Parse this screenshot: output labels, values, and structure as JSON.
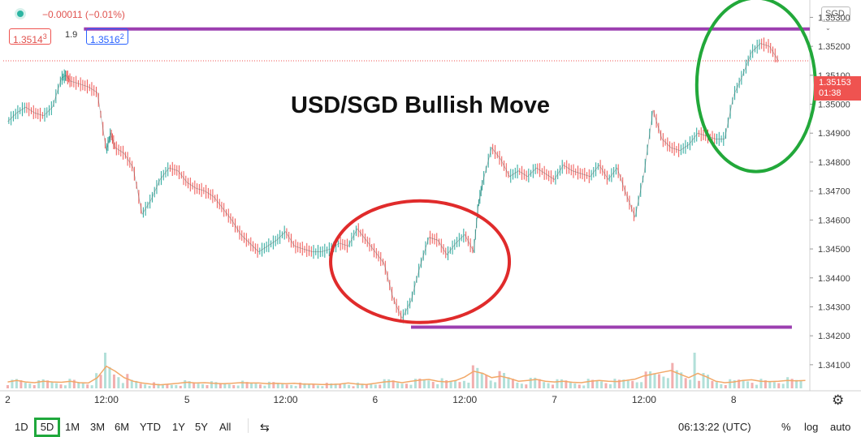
{
  "header": {
    "change": "−0.00011 (−0.01%)",
    "bid": "1.3514",
    "bid_sup": "3",
    "spread": "1.9",
    "ask": "1.3516",
    "ask_sup": "2"
  },
  "currency_button": "SGD",
  "price_tag": {
    "price": "1.35153",
    "countdown": "01:38"
  },
  "annotation": "USD/SGD Bullish Move",
  "toolbar": {
    "ranges": [
      "1D",
      "5D",
      "1M",
      "3M",
      "6M",
      "YTD",
      "1Y",
      "5Y",
      "All"
    ],
    "active_range": "5D",
    "time": "06:13:22 (UTC)",
    "percent": "%",
    "log": "log",
    "auto": "auto"
  },
  "colors": {
    "up": "#26a69a",
    "down": "#ef5350",
    "resistance_line": "#9c3fb0",
    "circle_low": "#e02b2b",
    "circle_high": "#22a83a",
    "volume_ma": "#f2a868"
  },
  "chart_data": {
    "type": "line",
    "title": "",
    "xlabel": "",
    "ylabel": "",
    "ylim": [
      1.3401,
      1.3536
    ],
    "y_ticks": [
      1.341,
      1.342,
      1.343,
      1.344,
      1.345,
      1.346,
      1.347,
      1.348,
      1.349,
      1.35,
      1.351,
      1.352,
      1.353
    ],
    "x_ticks": [
      {
        "label": "2",
        "t": 0.0
      },
      {
        "label": "12:00",
        "t": 11.0
      },
      {
        "label": "5",
        "t": 20.0
      },
      {
        "label": "12:00",
        "t": 31.0
      },
      {
        "label": "6",
        "t": 41.0
      },
      {
        "label": "12:00",
        "t": 51.0
      },
      {
        "label": "7",
        "t": 61.0
      },
      {
        "label": "12:00",
        "t": 71.0
      },
      {
        "label": "8",
        "t": 81.0
      }
    ],
    "xlim": [
      -0.5,
      89.5
    ],
    "series": [
      {
        "x": [
          0,
          1,
          2,
          3,
          4,
          5,
          6,
          6.5,
          7,
          8,
          9,
          10,
          11,
          11.5,
          12,
          13,
          14,
          15,
          16,
          17,
          18,
          19,
          20,
          21,
          22,
          23,
          24,
          25,
          26,
          27,
          28,
          29,
          30,
          31,
          32,
          33,
          34,
          35,
          36,
          37,
          38,
          39,
          40,
          41,
          42,
          43,
          44,
          45,
          46,
          47,
          48,
          49,
          50,
          51,
          52,
          52.5,
          53,
          54,
          55,
          56,
          57,
          58,
          59,
          60,
          61,
          62,
          63,
          64,
          65,
          66,
          67,
          68,
          69,
          70,
          71,
          72,
          73,
          74,
          75,
          76,
          77,
          78,
          79,
          80,
          81,
          82,
          83,
          84,
          85,
          86
        ],
        "y": [
          1.3494,
          1.3497,
          1.3499,
          1.3497,
          1.3496,
          1.3499,
          1.3509,
          1.351,
          1.3508,
          1.3507,
          1.3506,
          1.3504,
          1.3484,
          1.349,
          1.3485,
          1.3483,
          1.3478,
          1.3462,
          1.3467,
          1.3474,
          1.3478,
          1.3477,
          1.3473,
          1.3471,
          1.347,
          1.3468,
          1.3464,
          1.346,
          1.3455,
          1.3452,
          1.3449,
          1.3451,
          1.3453,
          1.3456,
          1.3451,
          1.345,
          1.3449,
          1.3449,
          1.345,
          1.3452,
          1.3451,
          1.3457,
          1.3453,
          1.3449,
          1.3445,
          1.3433,
          1.3426,
          1.3432,
          1.3444,
          1.3454,
          1.3453,
          1.3448,
          1.3452,
          1.3455,
          1.3449,
          1.3465,
          1.3473,
          1.3485,
          1.3481,
          1.3475,
          1.3477,
          1.3475,
          1.3478,
          1.3476,
          1.3474,
          1.3479,
          1.3477,
          1.3476,
          1.3475,
          1.3479,
          1.3474,
          1.3478,
          1.3469,
          1.3461,
          1.3476,
          1.3498,
          1.3488,
          1.3485,
          1.3484,
          1.3486,
          1.349,
          1.3489,
          1.3488,
          1.3488,
          1.3503,
          1.351,
          1.3518,
          1.3521,
          1.352,
          1.3515
        ]
      }
    ],
    "horizontal_lines": [
      {
        "y": 1.3526,
        "x_range": [
          8.5,
          89.5
        ]
      },
      {
        "y": 1.3423,
        "x_range": [
          45.0,
          87.5
        ]
      }
    ],
    "circled_regions": [
      {
        "x_center": 46.0,
        "y_center": 1.34456,
        "color_key": "circle_low"
      },
      {
        "x_center": 83.5,
        "y_center": 1.35067,
        "color_key": "circle_high"
      }
    ],
    "volume": {
      "note_spikes_at_x": [
        11.0,
        76.5
      ],
      "ma": [
        0.18,
        0.22,
        0.18,
        0.16,
        0.2,
        0.18,
        0.17,
        0.2,
        0.16,
        0.15,
        0.3,
        0.62,
        0.48,
        0.3,
        0.2,
        0.15,
        0.12,
        0.1,
        0.12,
        0.14,
        0.17,
        0.15,
        0.16,
        0.14,
        0.13,
        0.14,
        0.16,
        0.15,
        0.15,
        0.13,
        0.14,
        0.13,
        0.14,
        0.12,
        0.12,
        0.11,
        0.11,
        0.12,
        0.15,
        0.12,
        0.11,
        0.14,
        0.18,
        0.2,
        0.16,
        0.2,
        0.23,
        0.25,
        0.2,
        0.18,
        0.22,
        0.32,
        0.48,
        0.42,
        0.3,
        0.34,
        0.28,
        0.2,
        0.22,
        0.25,
        0.2,
        0.18,
        0.2,
        0.17,
        0.16,
        0.2,
        0.22,
        0.2,
        0.19,
        0.22,
        0.26,
        0.35,
        0.4,
        0.45,
        0.5,
        0.4,
        0.3,
        0.42,
        0.32,
        0.2,
        0.16,
        0.18,
        0.22,
        0.24,
        0.2,
        0.19,
        0.2,
        0.22,
        0.21,
        0.22
      ]
    }
  }
}
